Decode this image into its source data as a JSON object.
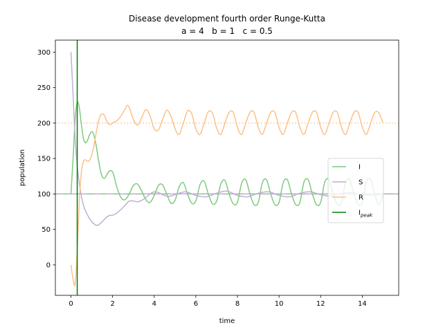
{
  "chart_data": {
    "type": "line",
    "title": "Disease development fourth order Runge-Kutta",
    "subtitle": "a = 4   b = 1   c = 0.5",
    "xlabel": "time",
    "ylabel": "population",
    "xlim": [
      -0.75,
      15.75
    ],
    "ylim": [
      -43,
      317
    ],
    "xticks": [
      0,
      2,
      4,
      6,
      8,
      10,
      12,
      14
    ],
    "yticks": [
      0,
      50,
      100,
      150,
      200,
      250,
      300
    ],
    "grid": false,
    "legend_position": "center-right",
    "reference_lines": [
      {
        "axis": "y",
        "value": 200,
        "color": "#fdc086",
        "style": "dotted"
      },
      {
        "axis": "y",
        "value": 100,
        "color": "#7fc97f",
        "style": "dashed"
      },
      {
        "axis": "y",
        "value": 100,
        "color": "#beaed4",
        "style": "dashed"
      }
    ],
    "series": [
      {
        "name": "I",
        "color": "#7fc97f",
        "x": [
          0,
          0.1,
          0.2,
          0.3,
          0.4,
          0.5,
          0.6,
          0.7,
          0.8,
          0.9,
          1.0,
          1.1,
          1.2,
          1.3,
          1.4,
          1.5,
          1.6,
          1.7,
          1.8,
          1.9,
          2.0,
          2.1,
          2.2,
          2.4,
          2.6,
          2.8,
          3.0,
          3.2,
          3.4,
          3.6,
          3.8,
          4.0,
          4.2,
          4.4,
          4.6,
          4.8,
          5.0,
          5.2,
          5.4,
          5.6,
          5.8,
          6.0,
          6.2,
          6.4,
          6.6,
          6.8,
          7.0,
          7.2,
          7.4,
          7.6,
          7.8,
          8.0,
          8.2,
          8.4,
          8.6,
          8.8,
          9.0,
          9.2,
          9.4,
          9.6,
          9.8,
          10.0,
          10.2,
          10.4,
          10.6,
          10.8,
          11.0,
          11.2,
          11.4,
          11.6,
          11.8,
          12.0,
          12.2,
          12.4,
          12.6,
          12.8,
          13.0,
          13.2,
          13.4,
          13.6,
          13.8,
          14.0,
          14.2,
          14.4,
          14.6,
          14.8,
          15.0
        ],
        "y": [
          100,
          150,
          205,
          229,
          222,
          198,
          178,
          172,
          176,
          184,
          188,
          183,
          170,
          152,
          135,
          125,
          122,
          126,
          131,
          133,
          131,
          122,
          110,
          95,
          92,
          100,
          112,
          114,
          104,
          92,
          88,
          98,
          112,
          113,
          100,
          87,
          91,
          110,
          116,
          100,
          87,
          90,
          113,
          118,
          100,
          86,
          90,
          114,
          119,
          100,
          86,
          88,
          115,
          120,
          100,
          85,
          88,
          116,
          120,
          100,
          85,
          88,
          116,
          120,
          100,
          85,
          88,
          117,
          120,
          100,
          85,
          88,
          117,
          120,
          100,
          85,
          88,
          117,
          120,
          100,
          85,
          88,
          117,
          120,
          100,
          85,
          100
        ]
      },
      {
        "name": "S",
        "color": "#beaed4",
        "x": [
          0,
          0.1,
          0.2,
          0.3,
          0.4,
          0.5,
          0.6,
          0.7,
          0.8,
          0.9,
          1.0,
          1.1,
          1.2,
          1.3,
          1.4,
          1.5,
          1.6,
          1.7,
          1.8,
          1.9,
          2.0,
          2.2,
          2.4,
          2.6,
          2.8,
          3.0,
          3.2,
          3.4,
          3.6,
          3.8,
          4.0,
          4.2,
          4.4,
          4.6,
          4.8,
          5.0,
          5.5,
          6.0,
          6.5,
          7.0,
          7.5,
          8.0,
          8.5,
          9.0,
          9.5,
          10.0,
          10.5,
          11.0,
          11.5,
          12.0,
          12.5,
          13.0,
          13.5,
          14.0,
          14.5,
          15.0
        ],
        "y": [
          300,
          240,
          178,
          140,
          115,
          97,
          84,
          76,
          70,
          65,
          61,
          58,
          56,
          56,
          58,
          61,
          64,
          67,
          69,
          70,
          70,
          73,
          78,
          84,
          90,
          90,
          89,
          91,
          95,
          100,
          103,
          102,
          99,
          97,
          97,
          99,
          103,
          98,
          96,
          101,
          104,
          98,
          96,
          101,
          103,
          98,
          96,
          101,
          103,
          99,
          97,
          101,
          102,
          99,
          98,
          100
        ]
      },
      {
        "name": "R",
        "color": "#fdc086",
        "x": [
          0,
          0.1,
          0.2,
          0.3,
          0.4,
          0.5,
          0.6,
          0.7,
          0.8,
          0.9,
          1.0,
          1.1,
          1.2,
          1.3,
          1.4,
          1.5,
          1.6,
          1.7,
          1.8,
          1.9,
          2.0,
          2.1,
          2.2,
          2.4,
          2.6,
          2.7,
          2.8,
          3.0,
          3.2,
          3.4,
          3.6,
          3.8,
          4.0,
          4.2,
          4.4,
          4.6,
          4.8,
          5.0,
          5.2,
          5.4,
          5.6,
          5.8,
          6.0,
          6.2,
          6.4,
          6.6,
          6.8,
          7.0,
          7.2,
          7.4,
          7.6,
          7.8,
          8.0,
          8.2,
          8.4,
          8.6,
          8.8,
          9.0,
          9.2,
          9.4,
          9.6,
          9.8,
          10.0,
          10.2,
          10.4,
          10.6,
          10.8,
          11.0,
          11.2,
          11.4,
          11.6,
          11.8,
          12.0,
          12.2,
          12.4,
          12.6,
          12.8,
          13.0,
          13.2,
          13.4,
          13.6,
          13.8,
          14.0,
          14.2,
          14.4,
          14.6,
          14.8,
          15.0
        ],
        "y": [
          0,
          -20,
          -27,
          20,
          90,
          130,
          146,
          148,
          146,
          148,
          155,
          168,
          184,
          200,
          210,
          213,
          211,
          204,
          199,
          198,
          200,
          202,
          203,
          210,
          220,
          225,
          222,
          205,
          197,
          208,
          219,
          210,
          192,
          190,
          205,
          218,
          210,
          192,
          184,
          200,
          217,
          213,
          192,
          184,
          200,
          216,
          214,
          193,
          184,
          200,
          215,
          215,
          194,
          184,
          200,
          215,
          215,
          194,
          184,
          200,
          215,
          215,
          194,
          184,
          200,
          215,
          215,
          194,
          184,
          200,
          215,
          215,
          194,
          184,
          200,
          215,
          215,
          194,
          184,
          200,
          215,
          215,
          194,
          184,
          200,
          215,
          214,
          200
        ]
      },
      {
        "name": "I_peak",
        "color": "#008000",
        "type": "vline",
        "x_value": 0.3
      }
    ]
  },
  "legend": [
    {
      "label": "I",
      "sub": "",
      "color": "#7fc97f"
    },
    {
      "label": "S",
      "sub": "",
      "color": "#beaed4"
    },
    {
      "label": "R",
      "sub": "",
      "color": "#fdc086"
    },
    {
      "label": "I",
      "sub": "peak",
      "color": "#008000"
    }
  ]
}
